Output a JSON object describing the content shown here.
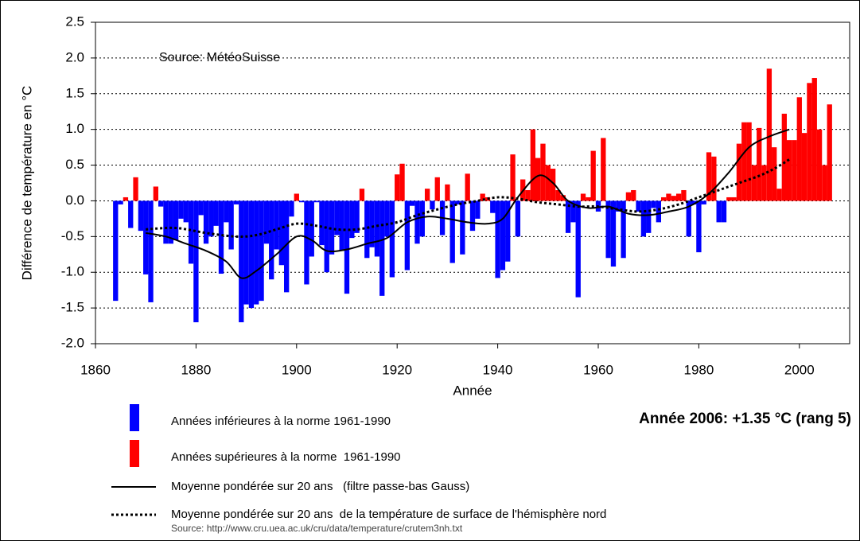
{
  "chart_data": {
    "type": "bar",
    "source_note": "Source: MétéoSuisse",
    "xlabel": "Année",
    "ylabel": "Différence de température en °C",
    "annotation": "Année 2006: +1.35 °C (rang 5)",
    "footer": "Source: http://www.cru.uea.ac.uk/cru/data/temperature/crutem3nh.txt",
    "xlim": [
      1860,
      2010
    ],
    "ylim": [
      -2,
      2.5
    ],
    "xticks": [
      1860,
      1880,
      1900,
      1920,
      1940,
      1960,
      1980,
      2000
    ],
    "yticks": [
      {
        "value": -2,
        "label": "-2.0"
      },
      -1.5,
      {
        "value": -1,
        "label": "-1.0"
      },
      -0.5,
      {
        "value": 0,
        "label": "0.0"
      },
      0.5,
      {
        "value": 1,
        "label": "1.0"
      },
      1.5,
      {
        "value": 2,
        "label": "2.0"
      },
      2.5
    ],
    "grid": true,
    "bar_colors": {
      "below": "#0000ff",
      "above": "#ff0000"
    },
    "legend": [
      {
        "name": "Années inférieures à la norme 1961-1990",
        "color": "#0000ff"
      },
      {
        "name": "Années supérieures à la norme  1961-1990",
        "color": "#ff0000"
      }
    ],
    "x": [
      1864,
      1865,
      1866,
      1867,
      1868,
      1869,
      1870,
      1871,
      1872,
      1873,
      1874,
      1875,
      1876,
      1877,
      1878,
      1879,
      1880,
      1881,
      1882,
      1883,
      1884,
      1885,
      1886,
      1887,
      1888,
      1889,
      1890,
      1891,
      1892,
      1893,
      1894,
      1895,
      1896,
      1897,
      1898,
      1899,
      1900,
      1901,
      1902,
      1903,
      1904,
      1905,
      1906,
      1907,
      1908,
      1909,
      1910,
      1911,
      1912,
      1913,
      1914,
      1915,
      1916,
      1917,
      1918,
      1919,
      1920,
      1921,
      1922,
      1923,
      1924,
      1925,
      1926,
      1927,
      1928,
      1929,
      1930,
      1931,
      1932,
      1933,
      1934,
      1935,
      1936,
      1937,
      1938,
      1939,
      1940,
      1941,
      1942,
      1943,
      1944,
      1945,
      1946,
      1947,
      1948,
      1949,
      1950,
      1951,
      1952,
      1953,
      1954,
      1955,
      1956,
      1957,
      1958,
      1959,
      1960,
      1961,
      1962,
      1963,
      1964,
      1965,
      1966,
      1967,
      1968,
      1969,
      1970,
      1971,
      1972,
      1973,
      1974,
      1975,
      1976,
      1977,
      1978,
      1979,
      1980,
      1981,
      1982,
      1983,
      1984,
      1985,
      1986,
      1987,
      1988,
      1989,
      1990,
      1991,
      1992,
      1993,
      1994,
      1995,
      1996,
      1997,
      1998,
      1999,
      2000,
      2001,
      2002,
      2003,
      2004,
      2005,
      2006
    ],
    "values": [
      -1.4,
      -0.05,
      0.05,
      -0.38,
      0.33,
      -0.42,
      -1.03,
      -1.42,
      0.2,
      -0.08,
      -0.6,
      -0.6,
      -0.55,
      -0.25,
      -0.3,
      -0.88,
      -1.7,
      -0.2,
      -0.6,
      -0.5,
      -0.35,
      -1.02,
      -0.3,
      -0.68,
      -0.05,
      -1.7,
      -1.45,
      -1.5,
      -1.45,
      -1.4,
      -0.6,
      -1.1,
      -0.68,
      -0.9,
      -1.28,
      -0.22,
      0.1,
      -0.02,
      -1.17,
      -0.78,
      -0.02,
      -0.62,
      -1.0,
      -0.75,
      -0.48,
      -0.7,
      -1.3,
      -0.52,
      -0.45,
      0.17,
      -0.8,
      -0.65,
      -0.78,
      -1.33,
      -0.5,
      -1.07,
      0.37,
      0.52,
      -0.97,
      -0.07,
      -0.6,
      -0.5,
      0.17,
      -0.12,
      0.33,
      -0.48,
      0.23,
      -0.87,
      -0.05,
      -0.75,
      0.38,
      -0.42,
      -0.25,
      0.1,
      0.05,
      -0.17,
      -1.08,
      -0.97,
      -0.85,
      0.65,
      -0.5,
      0.3,
      0.15,
      1.0,
      0.6,
      0.8,
      0.5,
      0.45,
      0.15,
      0.08,
      -0.45,
      -0.3,
      -1.35,
      0.1,
      0.05,
      0.7,
      -0.15,
      0.88,
      -0.8,
      -0.92,
      -0.15,
      -0.8,
      0.12,
      0.15,
      -0.15,
      -0.5,
      -0.45,
      -0.1,
      -0.3,
      0.05,
      0.1,
      0.07,
      0.1,
      0.15,
      -0.5,
      -0.05,
      -0.72,
      -0.05,
      0.68,
      0.62,
      -0.3,
      -0.3,
      0.05,
      0.05,
      0.8,
      1.1,
      1.1,
      0.5,
      1.02,
      0.5,
      1.85,
      0.75,
      0.17,
      1.22,
      0.85,
      0.85,
      1.45,
      0.95,
      1.65,
      1.72,
      1.0,
      0.5,
      1.35
    ],
    "lines": [
      {
        "name": "Moyenne pondérée sur 20 ans   (filtre passe-bas Gauss)",
        "style": "solid",
        "color": "#000000",
        "x": [
          1870,
          1874,
          1878,
          1882,
          1886,
          1889,
          1892,
          1896,
          1900,
          1903,
          1906,
          1910,
          1914,
          1918,
          1922,
          1926,
          1930,
          1934,
          1938,
          1941,
          1944,
          1948,
          1951,
          1954,
          1958,
          1962,
          1966,
          1970,
          1974,
          1978,
          1982,
          1986,
          1990,
          1994,
          1998
        ],
        "values": [
          -0.45,
          -0.5,
          -0.6,
          -0.7,
          -0.85,
          -1.08,
          -0.98,
          -0.75,
          -0.5,
          -0.55,
          -0.7,
          -0.68,
          -0.6,
          -0.52,
          -0.3,
          -0.22,
          -0.25,
          -0.3,
          -0.32,
          -0.25,
          0.05,
          0.35,
          0.25,
          0.0,
          -0.1,
          -0.08,
          -0.18,
          -0.2,
          -0.15,
          -0.08,
          0.1,
          0.4,
          0.75,
          0.9,
          1.0
        ]
      },
      {
        "name": "Moyenne pondérée sur 20 ans  de la température de surface de l'hémisphère nord",
        "style": "dotted",
        "color": "#000000",
        "x": [
          1870,
          1876,
          1882,
          1888,
          1892,
          1896,
          1900,
          1904,
          1908,
          1912,
          1916,
          1920,
          1924,
          1928,
          1932,
          1936,
          1940,
          1944,
          1948,
          1952,
          1956,
          1960,
          1964,
          1968,
          1972,
          1976,
          1980,
          1984,
          1988,
          1992,
          1995,
          1998
        ],
        "values": [
          -0.4,
          -0.38,
          -0.45,
          -0.5,
          -0.48,
          -0.4,
          -0.32,
          -0.35,
          -0.4,
          -0.4,
          -0.35,
          -0.3,
          -0.2,
          -0.12,
          -0.05,
          0.0,
          0.05,
          0.03,
          -0.02,
          -0.05,
          -0.08,
          -0.08,
          -0.12,
          -0.15,
          -0.12,
          -0.05,
          0.05,
          0.15,
          0.25,
          0.35,
          0.45,
          0.58
        ]
      }
    ]
  }
}
